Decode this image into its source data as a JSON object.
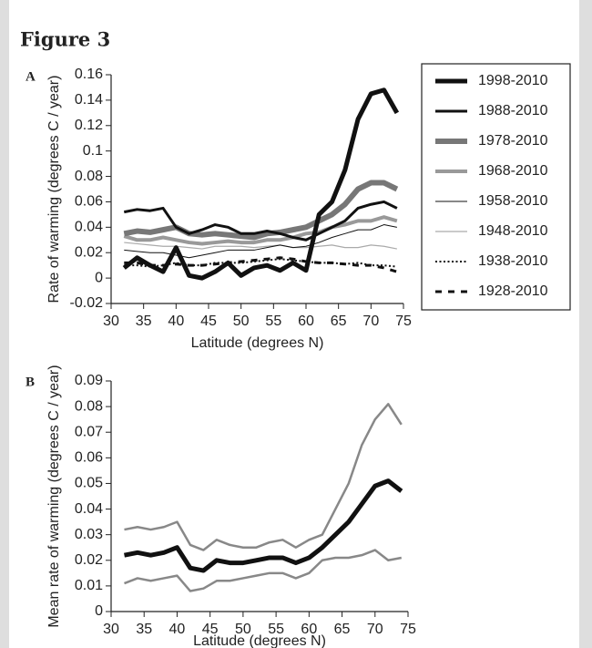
{
  "title": "Figure 3",
  "chart_data": [
    {
      "type": "line",
      "panel": "A",
      "ylabel": "Rate of warming (degrees C / year)",
      "xlabel": "Latitude (degrees N)",
      "xlim": [
        30,
        75
      ],
      "xticks": [
        30,
        35,
        40,
        45,
        50,
        55,
        60,
        65,
        70,
        75
      ],
      "ylim": [
        -0.02,
        0.16
      ],
      "yticks": [
        -0.02,
        0,
        0.02,
        0.04,
        0.06,
        0.08,
        0.1,
        0.12,
        0.14,
        0.16
      ],
      "legend": "right",
      "x": [
        32,
        34,
        36,
        38,
        40,
        42,
        44,
        46,
        48,
        50,
        52,
        54,
        56,
        58,
        60,
        62,
        64,
        66,
        68,
        70,
        72,
        74
      ],
      "series": [
        {
          "name": "1998-2010",
          "color": "#111111",
          "linewidth": 5,
          "linestyle": "solid",
          "values": [
            0.008,
            0.016,
            0.01,
            0.005,
            0.024,
            0.002,
            0.0,
            0.005,
            0.012,
            0.002,
            0.008,
            0.01,
            0.006,
            0.012,
            0.006,
            0.05,
            0.06,
            0.085,
            0.125,
            0.145,
            0.148,
            0.13
          ]
        },
        {
          "name": "1988-2010",
          "color": "#111111",
          "linewidth": 3,
          "linestyle": "solid",
          "values": [
            0.052,
            0.054,
            0.053,
            0.055,
            0.04,
            0.035,
            0.038,
            0.042,
            0.04,
            0.035,
            0.035,
            0.037,
            0.035,
            0.032,
            0.03,
            0.035,
            0.04,
            0.045,
            0.055,
            0.058,
            0.06,
            0.055
          ]
        },
        {
          "name": "1978-2010",
          "color": "#777777",
          "linewidth": 6,
          "linestyle": "solid",
          "values": [
            0.035,
            0.037,
            0.036,
            0.038,
            0.04,
            0.035,
            0.034,
            0.035,
            0.034,
            0.033,
            0.032,
            0.035,
            0.036,
            0.038,
            0.04,
            0.045,
            0.05,
            0.058,
            0.07,
            0.075,
            0.075,
            0.07
          ]
        },
        {
          "name": "1968-2010",
          "color": "#999999",
          "linewidth": 4,
          "linestyle": "solid",
          "values": [
            0.033,
            0.03,
            0.03,
            0.032,
            0.03,
            0.028,
            0.027,
            0.028,
            0.029,
            0.028,
            0.028,
            0.03,
            0.03,
            0.032,
            0.035,
            0.036,
            0.04,
            0.042,
            0.045,
            0.045,
            0.048,
            0.045
          ]
        },
        {
          "name": "1958-2010",
          "color": "#111111",
          "linewidth": 1,
          "linestyle": "solid",
          "values": [
            0.022,
            0.021,
            0.02,
            0.02,
            0.018,
            0.016,
            0.018,
            0.02,
            0.022,
            0.022,
            0.022,
            0.024,
            0.026,
            0.024,
            0.025,
            0.028,
            0.032,
            0.035,
            0.038,
            0.038,
            0.042,
            0.04
          ]
        },
        {
          "name": "1948-2010",
          "color": "#aaaaaa",
          "linewidth": 1.2,
          "linestyle": "solid",
          "values": [
            0.028,
            0.027,
            0.026,
            0.025,
            0.025,
            0.024,
            0.023,
            0.025,
            0.025,
            0.025,
            0.024,
            0.025,
            0.026,
            0.024,
            0.024,
            0.025,
            0.026,
            0.024,
            0.024,
            0.026,
            0.025,
            0.023
          ]
        },
        {
          "name": "1938-2010",
          "color": "#111111",
          "linewidth": 2,
          "linestyle": "dotted",
          "values": [
            0.01,
            0.01,
            0.009,
            0.01,
            0.012,
            0.01,
            0.01,
            0.012,
            0.012,
            0.012,
            0.013,
            0.014,
            0.015,
            0.014,
            0.013,
            0.012,
            0.012,
            0.011,
            0.012,
            0.01,
            0.01,
            0.009
          ]
        },
        {
          "name": "1928-2010",
          "color": "#111111",
          "linewidth": 3,
          "linestyle": "dashed",
          "values": [
            0.012,
            0.012,
            0.01,
            0.01,
            0.011,
            0.01,
            0.01,
            0.011,
            0.012,
            0.013,
            0.014,
            0.015,
            0.016,
            0.015,
            0.013,
            0.012,
            0.012,
            0.011,
            0.01,
            0.01,
            0.008,
            0.005
          ]
        }
      ]
    },
    {
      "type": "line",
      "panel": "B",
      "ylabel": "Mean rate of warming (degrees C / year)",
      "xlabel": "Latitude (degrees N)",
      "xlim": [
        30,
        75
      ],
      "xticks": [
        30,
        35,
        40,
        45,
        50,
        55,
        60,
        65,
        70,
        75
      ],
      "ylim": [
        0,
        0.09
      ],
      "yticks": [
        0,
        0.01,
        0.02,
        0.03,
        0.04,
        0.05,
        0.06,
        0.07,
        0.08,
        0.09
      ],
      "x": [
        32,
        34,
        36,
        38,
        40,
        42,
        44,
        46,
        48,
        50,
        52,
        54,
        56,
        58,
        60,
        62,
        64,
        66,
        68,
        70,
        72,
        74
      ],
      "series": [
        {
          "color": "#888888",
          "linewidth": 2.5,
          "linestyle": "solid",
          "values": [
            0.032,
            0.033,
            0.032,
            0.033,
            0.035,
            0.026,
            0.024,
            0.028,
            0.026,
            0.025,
            0.025,
            0.027,
            0.028,
            0.025,
            0.028,
            0.03,
            0.04,
            0.05,
            0.065,
            0.075,
            0.081,
            0.073
          ]
        },
        {
          "color": "#111111",
          "linewidth": 5,
          "linestyle": "solid",
          "values": [
            0.022,
            0.023,
            0.022,
            0.023,
            0.025,
            0.017,
            0.016,
            0.02,
            0.019,
            0.019,
            0.02,
            0.021,
            0.021,
            0.019,
            0.021,
            0.025,
            0.03,
            0.035,
            0.042,
            0.049,
            0.051,
            0.047
          ]
        },
        {
          "color": "#888888",
          "linewidth": 2.5,
          "linestyle": "solid",
          "values": [
            0.011,
            0.013,
            0.012,
            0.013,
            0.014,
            0.008,
            0.009,
            0.012,
            0.012,
            0.013,
            0.014,
            0.015,
            0.015,
            0.013,
            0.015,
            0.02,
            0.021,
            0.021,
            0.022,
            0.024,
            0.02,
            0.021
          ]
        }
      ]
    }
  ]
}
